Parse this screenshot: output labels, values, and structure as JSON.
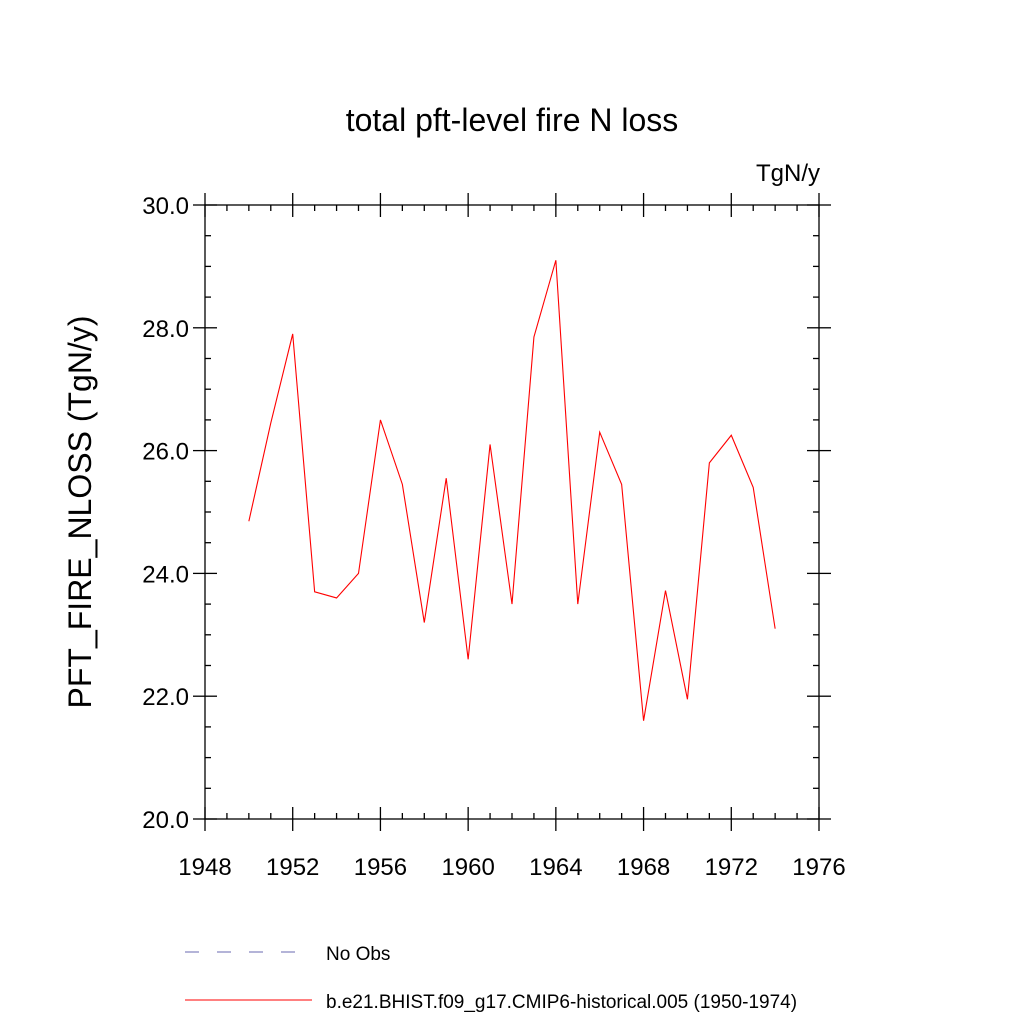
{
  "chart_data": {
    "type": "line",
    "title": "total pft-level fire N loss",
    "units_label": "TgN/y",
    "ylabel": "PFT_FIRE_NLOSS  (TgN/y)",
    "xlabel": "",
    "xlim": [
      1948,
      1976
    ],
    "ylim": [
      20.0,
      30.0
    ],
    "x_ticks": [
      1948,
      1952,
      1956,
      1960,
      1964,
      1968,
      1972,
      1976
    ],
    "x_tick_labels": [
      "1948",
      "1952",
      "1956",
      "1960",
      "1964",
      "1968",
      "1972",
      "1976"
    ],
    "y_ticks": [
      20,
      22,
      24,
      26,
      28,
      30
    ],
    "y_tick_labels": [
      "20.0",
      "22.0",
      "24.0",
      "26.0",
      "28.0",
      "30.0"
    ],
    "grid": false,
    "legend_position": "bottom",
    "series": [
      {
        "name": "b.e21.BHIST.f09_g17.CMIP6-historical.005 (1950-1974)",
        "color": "#ff0000",
        "style": "solid",
        "x": [
          1950,
          1951,
          1952,
          1953,
          1954,
          1955,
          1956,
          1957,
          1958,
          1959,
          1960,
          1961,
          1962,
          1963,
          1964,
          1965,
          1966,
          1967,
          1968,
          1969,
          1970,
          1971,
          1972,
          1973,
          1974
        ],
        "values": [
          24.85,
          26.45,
          27.9,
          23.7,
          23.6,
          24.0,
          26.5,
          25.45,
          23.2,
          25.55,
          22.6,
          26.1,
          23.5,
          27.85,
          29.1,
          23.5,
          26.3,
          25.45,
          21.6,
          23.72,
          21.95,
          25.8,
          26.25,
          25.4,
          23.1
        ]
      }
    ],
    "legend": [
      {
        "label": "No Obs",
        "color": "#6a6ab0",
        "style": "dashed"
      },
      {
        "label": "b.e21.BHIST.f09_g17.CMIP6-historical.005 (1950-1974)",
        "color": "#ff0000",
        "style": "solid"
      }
    ]
  }
}
